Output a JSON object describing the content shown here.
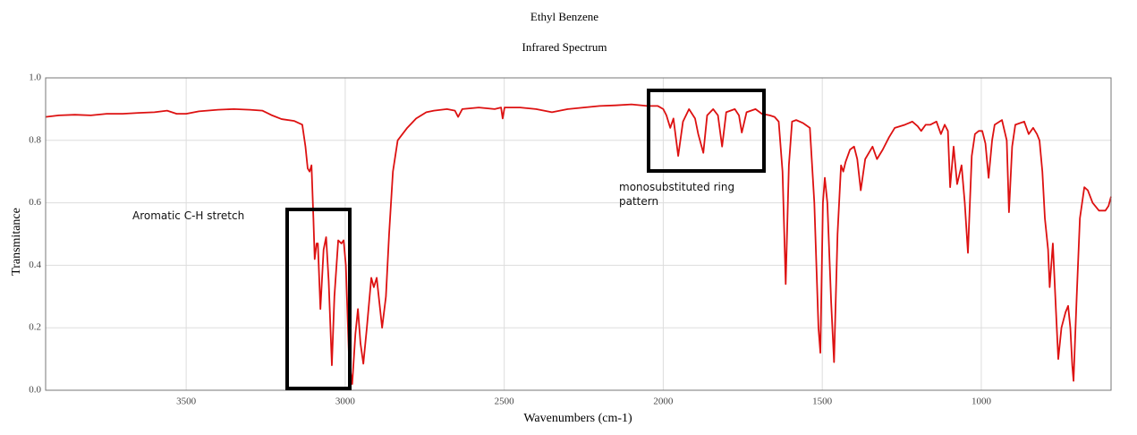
{
  "chart_data": {
    "type": "line",
    "title": "Ethyl Benzene",
    "subtitle": "Infrared Spectrum",
    "xlabel": "Wavenumbers (cm-1)",
    "ylabel": "Transmitance",
    "annotations": [
      "Aromatic C-H stretch",
      "monosubstituted ring pattern"
    ],
    "xlim": [
      3942,
      592
    ],
    "ylim": [
      0,
      1
    ],
    "xticks": [
      3500,
      3000,
      2500,
      2000,
      1500,
      1000
    ],
    "yticks": [
      {
        "value": 0,
        "label": "0.0"
      },
      0.2,
      0.4,
      0.6,
      0.8,
      {
        "value": 1,
        "label": "1.0"
      }
    ],
    "grid": true,
    "x": [
      3942,
      3900,
      3850,
      3800,
      3750,
      3700,
      3650,
      3600,
      3560,
      3530,
      3500,
      3460,
      3400,
      3350,
      3300,
      3260,
      3230,
      3200,
      3160,
      3135,
      3125,
      3118,
      3112,
      3106,
      3100,
      3096,
      3090,
      3086,
      3078,
      3068,
      3060,
      3052,
      3042,
      3034,
      3022,
      3012,
      3005,
      2998,
      2988,
      2978,
      2968,
      2960,
      2952,
      2943,
      2932,
      2918,
      2910,
      2901,
      2884,
      2872,
      2862,
      2850,
      2835,
      2805,
      2777,
      2745,
      2721,
      2680,
      2655,
      2645,
      2632,
      2580,
      2530,
      2510,
      2505,
      2499,
      2450,
      2400,
      2350,
      2300,
      2250,
      2200,
      2150,
      2100,
      2050,
      2017,
      2000,
      1990,
      1978,
      1968,
      1953,
      1938,
      1919,
      1900,
      1890,
      1874,
      1862,
      1843,
      1828,
      1815,
      1802,
      1775,
      1762,
      1753,
      1738,
      1710,
      1690,
      1665,
      1650,
      1637,
      1625,
      1615,
      1605,
      1595,
      1582,
      1560,
      1539,
      1525,
      1512,
      1506,
      1498,
      1492,
      1484,
      1472,
      1463,
      1452,
      1441,
      1434,
      1427,
      1413,
      1400,
      1390,
      1379,
      1365,
      1342,
      1328,
      1310,
      1290,
      1272,
      1240,
      1217,
      1200,
      1189,
      1175,
      1160,
      1141,
      1127,
      1115,
      1105,
      1098,
      1087,
      1076,
      1062,
      1052,
      1042,
      1030,
      1020,
      1008,
      997,
      987,
      977,
      966,
      958,
      935,
      920,
      913,
      903,
      893,
      865,
      851,
      837,
      825,
      817,
      808,
      800,
      790,
      785,
      775,
      765,
      758,
      748,
      735,
      727,
      720,
      714,
      710,
      700,
      690,
      676,
      665,
      650,
      630,
      610,
      600,
      592
    ],
    "series": [
      {
        "name": "Ethyl Benzene",
        "color": "#dd1111",
        "values": [
          0.875,
          0.88,
          0.882,
          0.88,
          0.885,
          0.885,
          0.888,
          0.89,
          0.895,
          0.885,
          0.885,
          0.893,
          0.898,
          0.9,
          0.898,
          0.895,
          0.88,
          0.868,
          0.862,
          0.85,
          0.78,
          0.71,
          0.7,
          0.72,
          0.55,
          0.42,
          0.47,
          0.47,
          0.26,
          0.45,
          0.49,
          0.35,
          0.08,
          0.3,
          0.48,
          0.47,
          0.48,
          0.4,
          0.1,
          0.02,
          0.18,
          0.26,
          0.15,
          0.085,
          0.2,
          0.36,
          0.33,
          0.36,
          0.2,
          0.3,
          0.5,
          0.7,
          0.8,
          0.84,
          0.87,
          0.89,
          0.895,
          0.9,
          0.895,
          0.875,
          0.9,
          0.905,
          0.9,
          0.905,
          0.87,
          0.905,
          0.905,
          0.9,
          0.89,
          0.9,
          0.905,
          0.91,
          0.912,
          0.915,
          0.91,
          0.91,
          0.9,
          0.88,
          0.84,
          0.87,
          0.75,
          0.86,
          0.9,
          0.87,
          0.82,
          0.76,
          0.88,
          0.9,
          0.88,
          0.78,
          0.89,
          0.9,
          0.88,
          0.825,
          0.89,
          0.9,
          0.885,
          0.88,
          0.875,
          0.86,
          0.7,
          0.34,
          0.72,
          0.86,
          0.865,
          0.855,
          0.84,
          0.6,
          0.2,
          0.12,
          0.6,
          0.68,
          0.6,
          0.28,
          0.09,
          0.5,
          0.72,
          0.7,
          0.73,
          0.77,
          0.78,
          0.74,
          0.64,
          0.74,
          0.78,
          0.74,
          0.77,
          0.81,
          0.84,
          0.85,
          0.86,
          0.845,
          0.83,
          0.85,
          0.85,
          0.86,
          0.82,
          0.85,
          0.83,
          0.65,
          0.78,
          0.66,
          0.72,
          0.6,
          0.44,
          0.75,
          0.82,
          0.83,
          0.83,
          0.79,
          0.68,
          0.8,
          0.85,
          0.865,
          0.8,
          0.57,
          0.78,
          0.85,
          0.86,
          0.82,
          0.84,
          0.82,
          0.8,
          0.7,
          0.55,
          0.45,
          0.33,
          0.47,
          0.25,
          0.1,
          0.2,
          0.25,
          0.27,
          0.2,
          0.08,
          0.03,
          0.3,
          0.55,
          0.65,
          0.64,
          0.6,
          0.575,
          0.575,
          0.59,
          0.62
        ]
      }
    ]
  }
}
